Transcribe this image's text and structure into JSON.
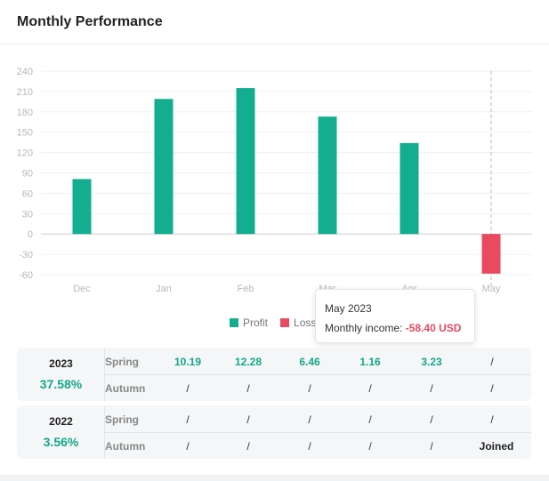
{
  "header": {
    "title": "Monthly Performance"
  },
  "chart_data": {
    "type": "bar",
    "title": "",
    "categories": [
      "Dec",
      "Jan",
      "Feb",
      "Mar",
      "Apr",
      "May"
    ],
    "series": [
      {
        "name": "Profit",
        "values": [
          81,
          199,
          215,
          173,
          134,
          null
        ],
        "color": "#13ad8f"
      },
      {
        "name": "Loss",
        "values": [
          null,
          null,
          null,
          null,
          null,
          -58.4
        ],
        "color": "#e84a5f"
      }
    ],
    "yticks": [
      240,
      210,
      180,
      150,
      120,
      90,
      60,
      30,
      0,
      -30,
      -60
    ],
    "ylim": [
      -60,
      240
    ],
    "grid": true,
    "legend_position": "bottom",
    "highlighted_category": "May"
  },
  "legend": {
    "profit_label": "Profit",
    "loss_label": "Loss"
  },
  "tooltip": {
    "title": "May 2023",
    "label": "Monthly income:",
    "value": "-58.40 USD"
  },
  "years": [
    {
      "year": "2023",
      "percent": "37.58%",
      "rows": [
        {
          "season": "Spring",
          "values": [
            "10.19",
            "12.28",
            "6.46",
            "1.16",
            "3.23",
            "/"
          ]
        },
        {
          "season": "Autumn",
          "values": [
            "/",
            "/",
            "/",
            "/",
            "/",
            "/"
          ]
        }
      ]
    },
    {
      "year": "2022",
      "percent": "3.56%",
      "rows": [
        {
          "season": "Spring",
          "values": [
            "/",
            "/",
            "/",
            "/",
            "/",
            "/"
          ]
        },
        {
          "season": "Autumn",
          "values": [
            "/",
            "/",
            "/",
            "/",
            "/",
            "Joined"
          ]
        }
      ]
    }
  ]
}
